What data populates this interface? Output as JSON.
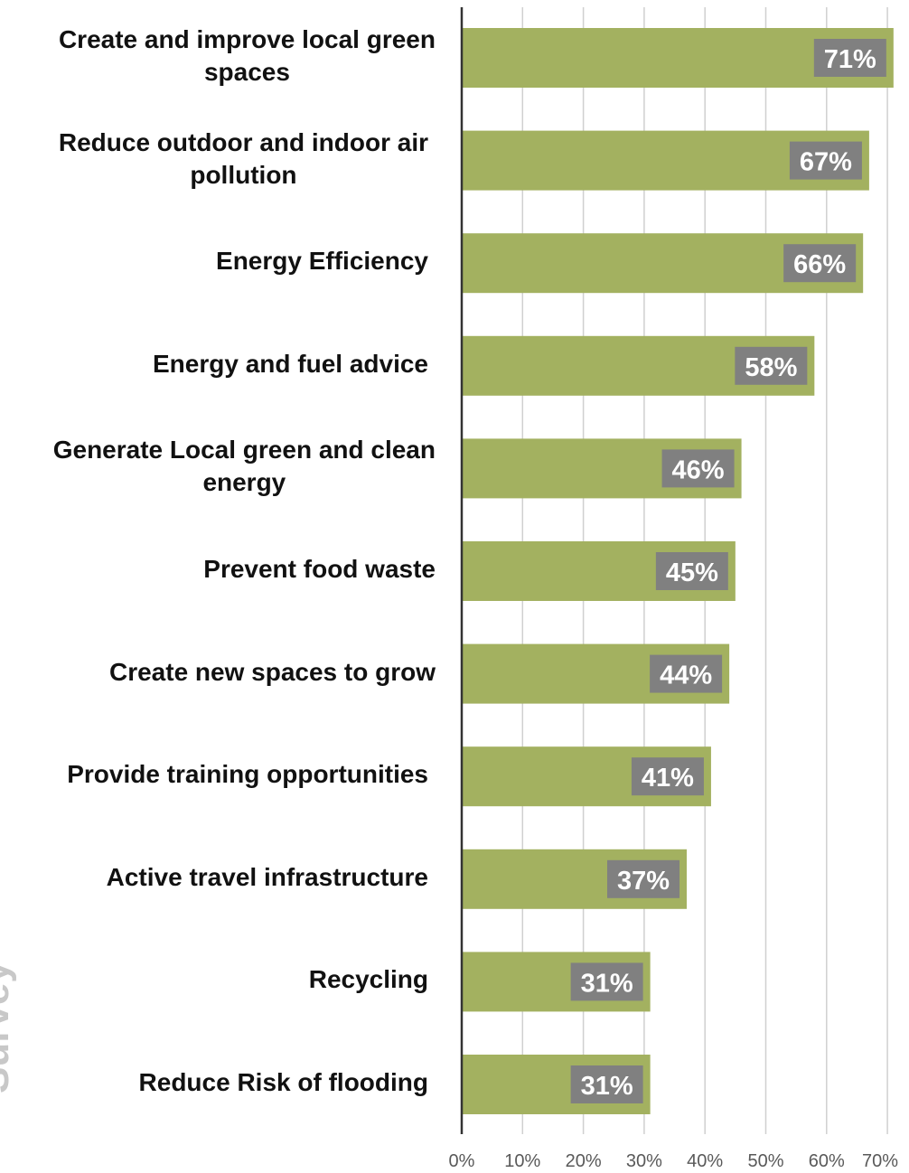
{
  "side_text": "Survey",
  "colors": {
    "bar": "#a3b160",
    "label_bg": "#808080",
    "label_text": "#ffffff",
    "grid": "#d0d0d0",
    "axis": "#333333"
  },
  "chart_data": {
    "type": "bar",
    "orientation": "horizontal",
    "categories": [
      "Create and improve local green spaces",
      "Reduce outdoor and indoor air pollution",
      "Energy Efficiency",
      "Energy and fuel advice",
      "Generate Local green and clean energy",
      "Prevent food waste",
      "Create new spaces to grow",
      "Provide training opportunities",
      "Active travel infrastructure",
      "Recycling",
      "Reduce Risk of flooding"
    ],
    "category_lines": [
      [
        "Create and improve local green",
        "spaces"
      ],
      [
        "Reduce outdoor and indoor air",
        "pollution"
      ],
      [
        "Energy Efficiency"
      ],
      [
        "Energy and fuel advice"
      ],
      [
        "Generate Local green and clean",
        "energy"
      ],
      [
        "Prevent food waste"
      ],
      [
        "Create new spaces to grow"
      ],
      [
        "Provide training opportunities"
      ],
      [
        "Active travel infrastructure"
      ],
      [
        "Recycling"
      ],
      [
        "Reduce Risk of flooding"
      ]
    ],
    "values": [
      71,
      67,
      66,
      58,
      46,
      45,
      44,
      41,
      37,
      31,
      31
    ],
    "data_labels": [
      "71%",
      "67%",
      "66%",
      "58%",
      "46%",
      "45%",
      "44%",
      "41%",
      "37%",
      "31%",
      "31%"
    ],
    "x_ticks": [
      "0%",
      "10%",
      "20%",
      "30%",
      "40%",
      "50%",
      "60%",
      "70%"
    ],
    "xlim": [
      0,
      70
    ],
    "grid": true
  }
}
